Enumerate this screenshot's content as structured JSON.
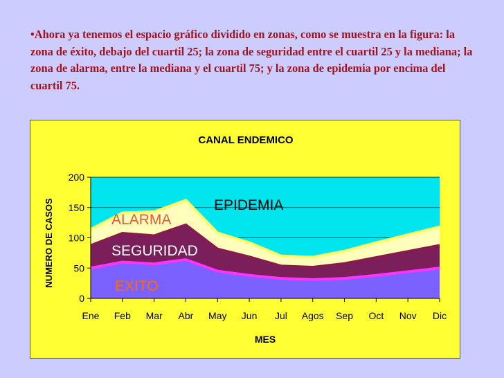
{
  "intro": {
    "bullet": "•",
    "text": "Ahora ya tenemos el espacio gráfico dividido en zonas, como se muestra en la figura: la zona de éxito, debajo del cuartil 25; la zona de seguridad entre el cuartil 25 y la mediana; la zona de alarma, entre la mediana y el cuartil 75; y la zona de epidemia por encima del cuartil 75."
  },
  "colors": {
    "page_background": "#ccccff",
    "intro_text": "#a0141e",
    "chart_panel": "#ffff33",
    "plot_background": "#00e5ee",
    "exito": "#7b61ff",
    "seguridad": "#7a1f5a",
    "alarma": "#ffffbb",
    "exito_line": "#ff33ff",
    "seguridad_line": "#8b1a4a",
    "alarma_line": "#ffff66",
    "label_exito": "#ff6a00",
    "label_seguridad": "#ffffff",
    "label_alarma": "#e05a38",
    "label_epidemia": "#000000"
  },
  "chart_data": {
    "type": "area",
    "title": "CANAL ENDEMICO",
    "xlabel": "MES",
    "ylabel": "NUMERO DE CASOS",
    "categories": [
      "Ene",
      "Feb",
      "Mar",
      "Abr",
      "May",
      "Jun",
      "Jul",
      "Agos",
      "Sep",
      "Oct",
      "Nov",
      "Dic"
    ],
    "ylim": [
      0,
      200
    ],
    "yticks": [
      0,
      50,
      100,
      150,
      200
    ],
    "grid": true,
    "series": [
      {
        "key": "cuartil25",
        "values": [
          50,
          60,
          57,
          64,
          45,
          38,
          33,
          31,
          33,
          38,
          44,
          50
        ]
      },
      {
        "key": "mediana",
        "values": [
          88,
          108,
          104,
          122,
          82,
          69,
          54,
          52,
          58,
          68,
          78,
          88
        ]
      },
      {
        "key": "cuartil75",
        "values": [
          114,
          141,
          143,
          162,
          108,
          92,
          70,
          68,
          78,
          92,
          105,
          118
        ]
      }
    ],
    "zone_labels": {
      "exito": "EXITO",
      "seguridad": "SEGURIDAD",
      "alarma": "ALARMA",
      "epidemia": "EPIDEMIA"
    }
  }
}
